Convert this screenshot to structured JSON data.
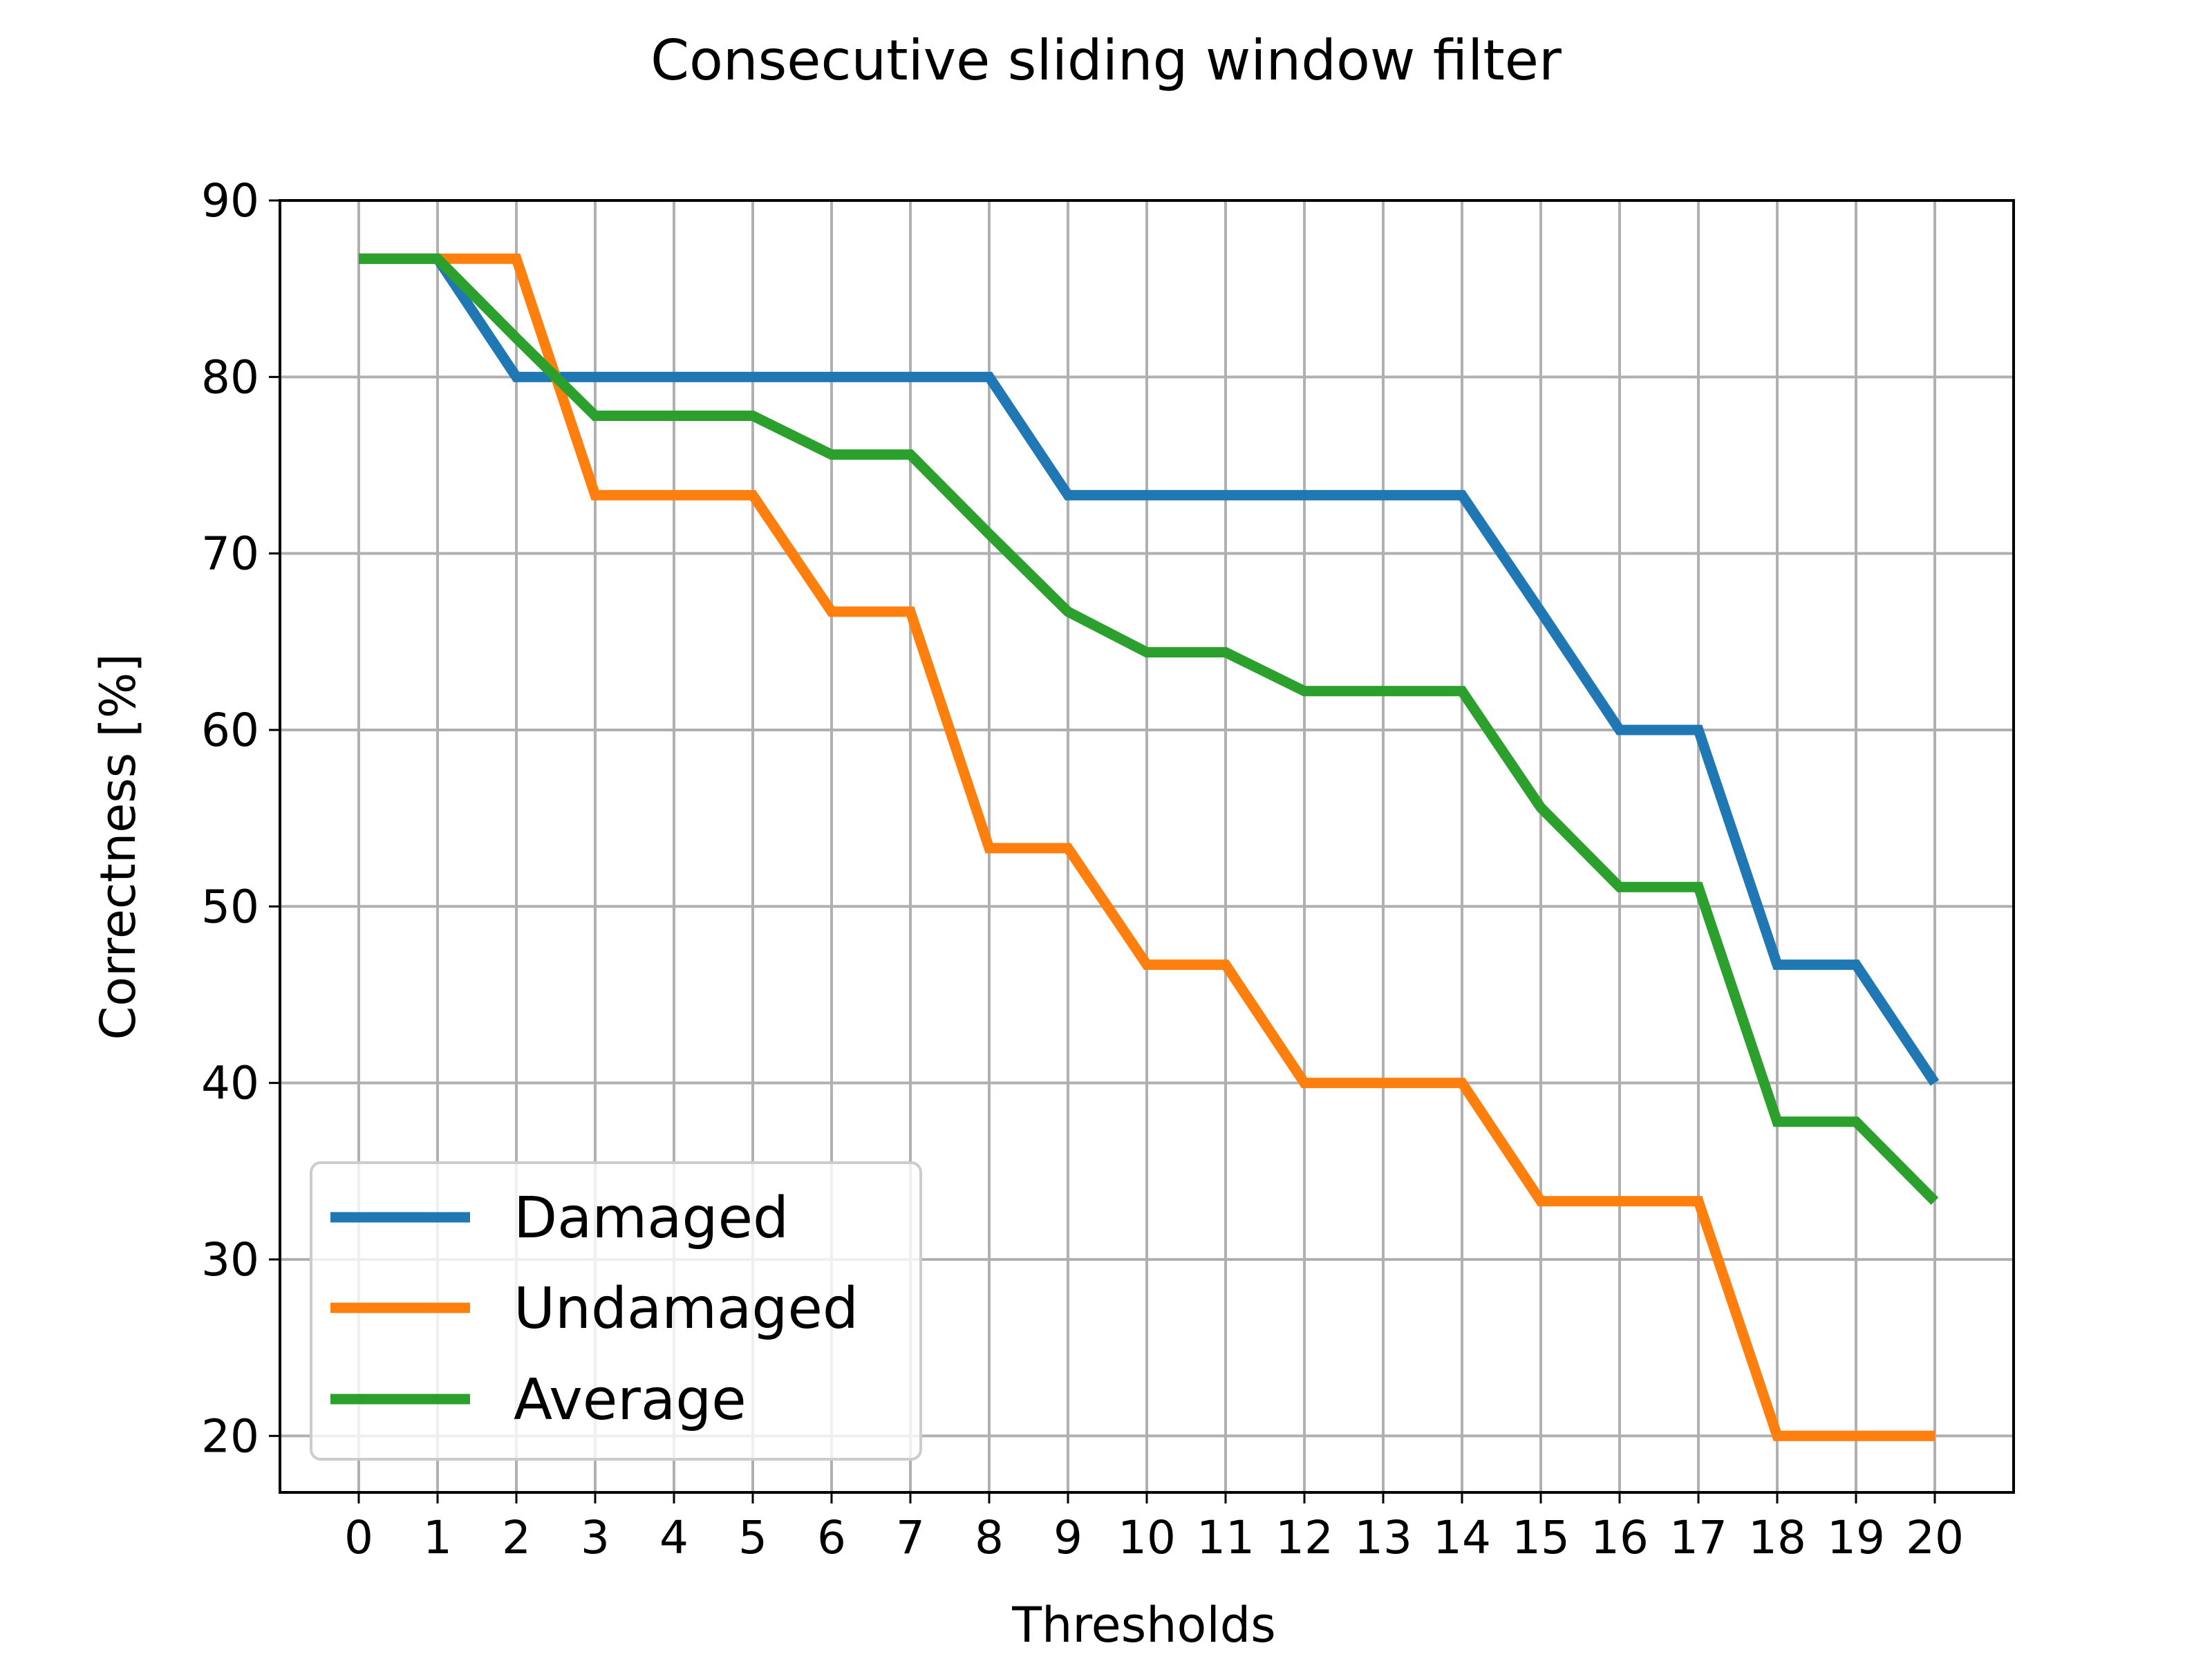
{
  "chart_data": {
    "type": "line",
    "title": "Consecutive sliding window filter",
    "xlabel": "Thresholds",
    "ylabel": "Correctness [%]",
    "x": [
      0,
      1,
      2,
      3,
      4,
      5,
      6,
      7,
      8,
      9,
      10,
      11,
      12,
      13,
      14,
      15,
      16,
      17,
      18,
      19,
      20
    ],
    "xlim": [
      -1,
      21
    ],
    "ylim": [
      16.8,
      90
    ],
    "yticks": [
      20,
      30,
      40,
      50,
      60,
      70,
      80,
      90
    ],
    "grid": true,
    "legend_position": "lower-left",
    "series": [
      {
        "name": "Damaged",
        "color": "#1f77b4",
        "values": [
          86.7,
          86.7,
          80.0,
          80.0,
          80.0,
          80.0,
          80.0,
          80.0,
          80.0,
          73.3,
          73.3,
          73.3,
          73.3,
          73.3,
          73.3,
          66.7,
          60.0,
          60.0,
          46.7,
          46.7,
          40.0
        ]
      },
      {
        "name": "Undamaged",
        "color": "#ff7f0e",
        "values": [
          86.7,
          86.7,
          86.7,
          73.3,
          73.3,
          73.3,
          66.7,
          66.7,
          53.3,
          53.3,
          46.7,
          46.7,
          40.0,
          40.0,
          40.0,
          33.3,
          33.3,
          33.3,
          20.0,
          20.0,
          20.0
        ]
      },
      {
        "name": "Average",
        "color": "#2ca02c",
        "values": [
          86.7,
          86.7,
          82.2,
          77.8,
          77.8,
          77.8,
          75.6,
          75.6,
          71.1,
          66.7,
          64.4,
          64.4,
          62.2,
          62.2,
          62.2,
          55.6,
          51.1,
          51.1,
          37.8,
          37.8,
          33.3
        ]
      }
    ]
  }
}
